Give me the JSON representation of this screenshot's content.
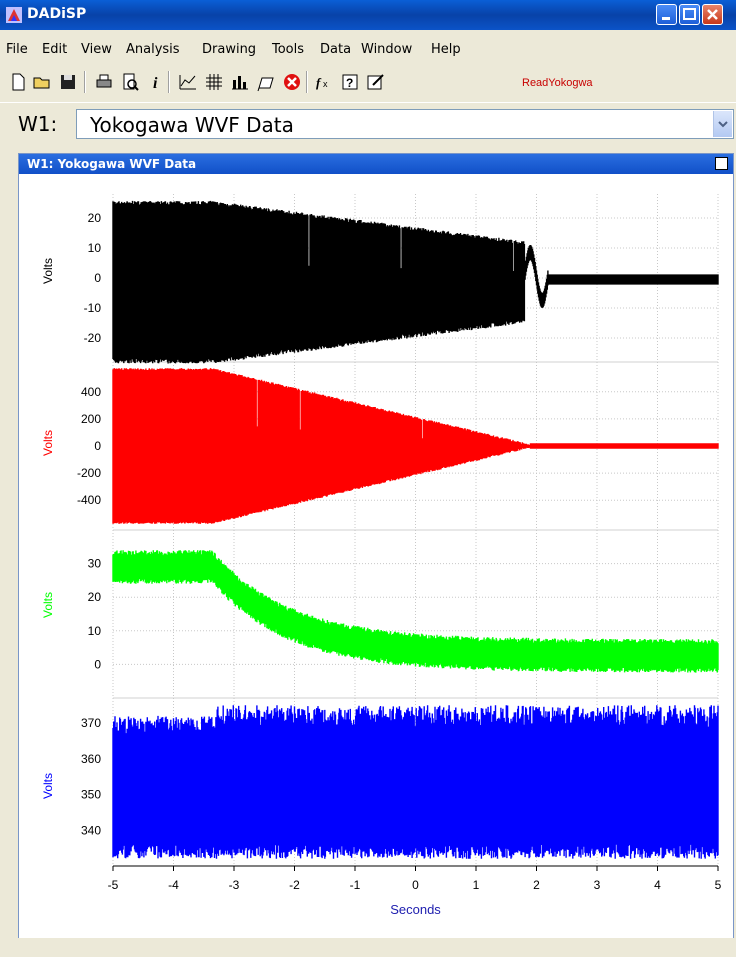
{
  "window": {
    "title": "DADiSP"
  },
  "menu": [
    "File",
    "Edit",
    "View",
    "Analysis",
    "Drawing",
    "Tools",
    "Data",
    "Window",
    "Help"
  ],
  "toolbar": {
    "icons": [
      "new-file-icon",
      "open-folder-icon",
      "save-icon",
      "print-icon",
      "print-preview-icon",
      "info-icon",
      "plot-icon",
      "grid-icon",
      "bar-chart-icon",
      "annotate-icon",
      "close-window-icon",
      "function-icon",
      "help-icon",
      "edit-icon"
    ],
    "macro_label": "ReadYokogwa"
  },
  "window_selector": {
    "label": "W1:",
    "value": "Yokogawa WVF Data"
  },
  "child_window": {
    "title": "W1: Yokogawa WVF Data"
  },
  "colors": {
    "black": "#000000",
    "red": "#ff0000",
    "green": "#00ff00",
    "blue": "#0000ff",
    "axis_label": "#2020b0"
  },
  "chart_data": {
    "type": "line",
    "xlabel": "Seconds",
    "xlim": [
      -5,
      5
    ],
    "xticks": [
      "-5",
      "-4",
      "-3",
      "-2",
      "-1",
      "0",
      "1",
      "2",
      "3",
      "4",
      "5"
    ],
    "panels": [
      {
        "ylabel": "Volts",
        "color": "#000000",
        "ylim": [
          -28,
          28
        ],
        "yticks": [
          "20",
          "10",
          "0",
          "-10",
          "-20"
        ]
      },
      {
        "ylabel": "Volts",
        "color": "#ff0000",
        "ylim": [
          -620,
          620
        ],
        "yticks": [
          "400",
          "200",
          "0",
          "-200",
          "-400"
        ]
      },
      {
        "ylabel": "Volts",
        "color": "#00ff00",
        "ylim": [
          -10,
          40
        ],
        "yticks": [
          "30",
          "20",
          "10",
          "0"
        ]
      },
      {
        "ylabel": "Volts",
        "color": "#0000ff",
        "ylim": [
          330,
          377
        ],
        "yticks": [
          "370",
          "360",
          "350",
          "340"
        ]
      }
    ]
  }
}
